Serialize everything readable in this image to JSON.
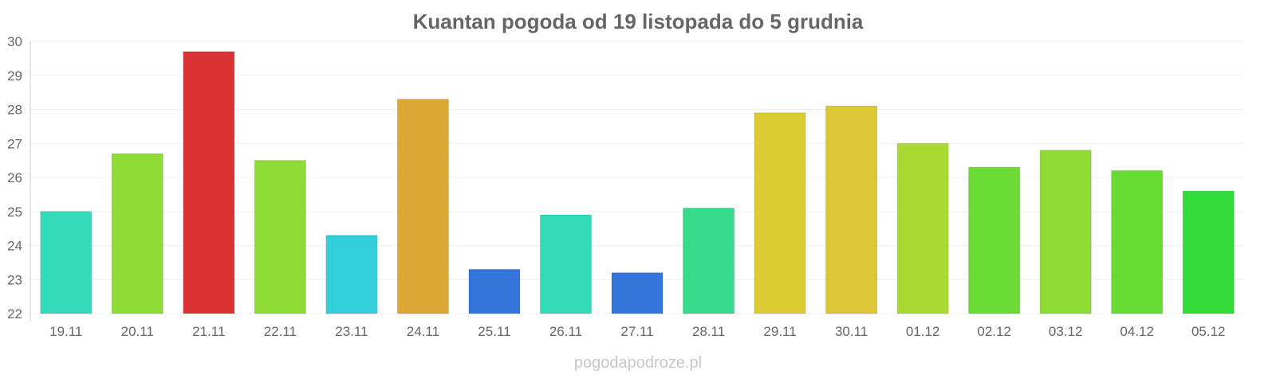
{
  "chart_data": {
    "type": "bar",
    "title": "Kuantan pogoda od 19 listopada do 5 grudnia",
    "xlabel": "",
    "ylabel": "",
    "ylim": [
      22,
      30
    ],
    "yticks": [
      22,
      23,
      24,
      25,
      26,
      27,
      28,
      29,
      30
    ],
    "grid": true,
    "categories": [
      "19.11",
      "20.11",
      "21.11",
      "22.11",
      "23.11",
      "24.11",
      "25.11",
      "26.11",
      "27.11",
      "28.11",
      "29.11",
      "30.11",
      "01.12",
      "02.12",
      "03.12",
      "04.12",
      "05.12"
    ],
    "values": [
      25.0,
      26.7,
      29.7,
      26.5,
      24.3,
      28.3,
      23.3,
      24.9,
      23.2,
      25.1,
      27.9,
      28.1,
      27.0,
      26.3,
      26.8,
      26.2,
      25.6
    ],
    "colors": [
      "#33dbbb",
      "#8ddb33",
      "#db3333",
      "#8ddb33",
      "#33cfdb",
      "#dba833",
      "#3375db",
      "#33dbb8",
      "#3375db",
      "#33db8a",
      "#dbcc33",
      "#dbc733",
      "#aadb33",
      "#6adb33",
      "#8ddb33",
      "#66db33",
      "#33db3a"
    ]
  },
  "watermark": "pogodapodroze.pl"
}
